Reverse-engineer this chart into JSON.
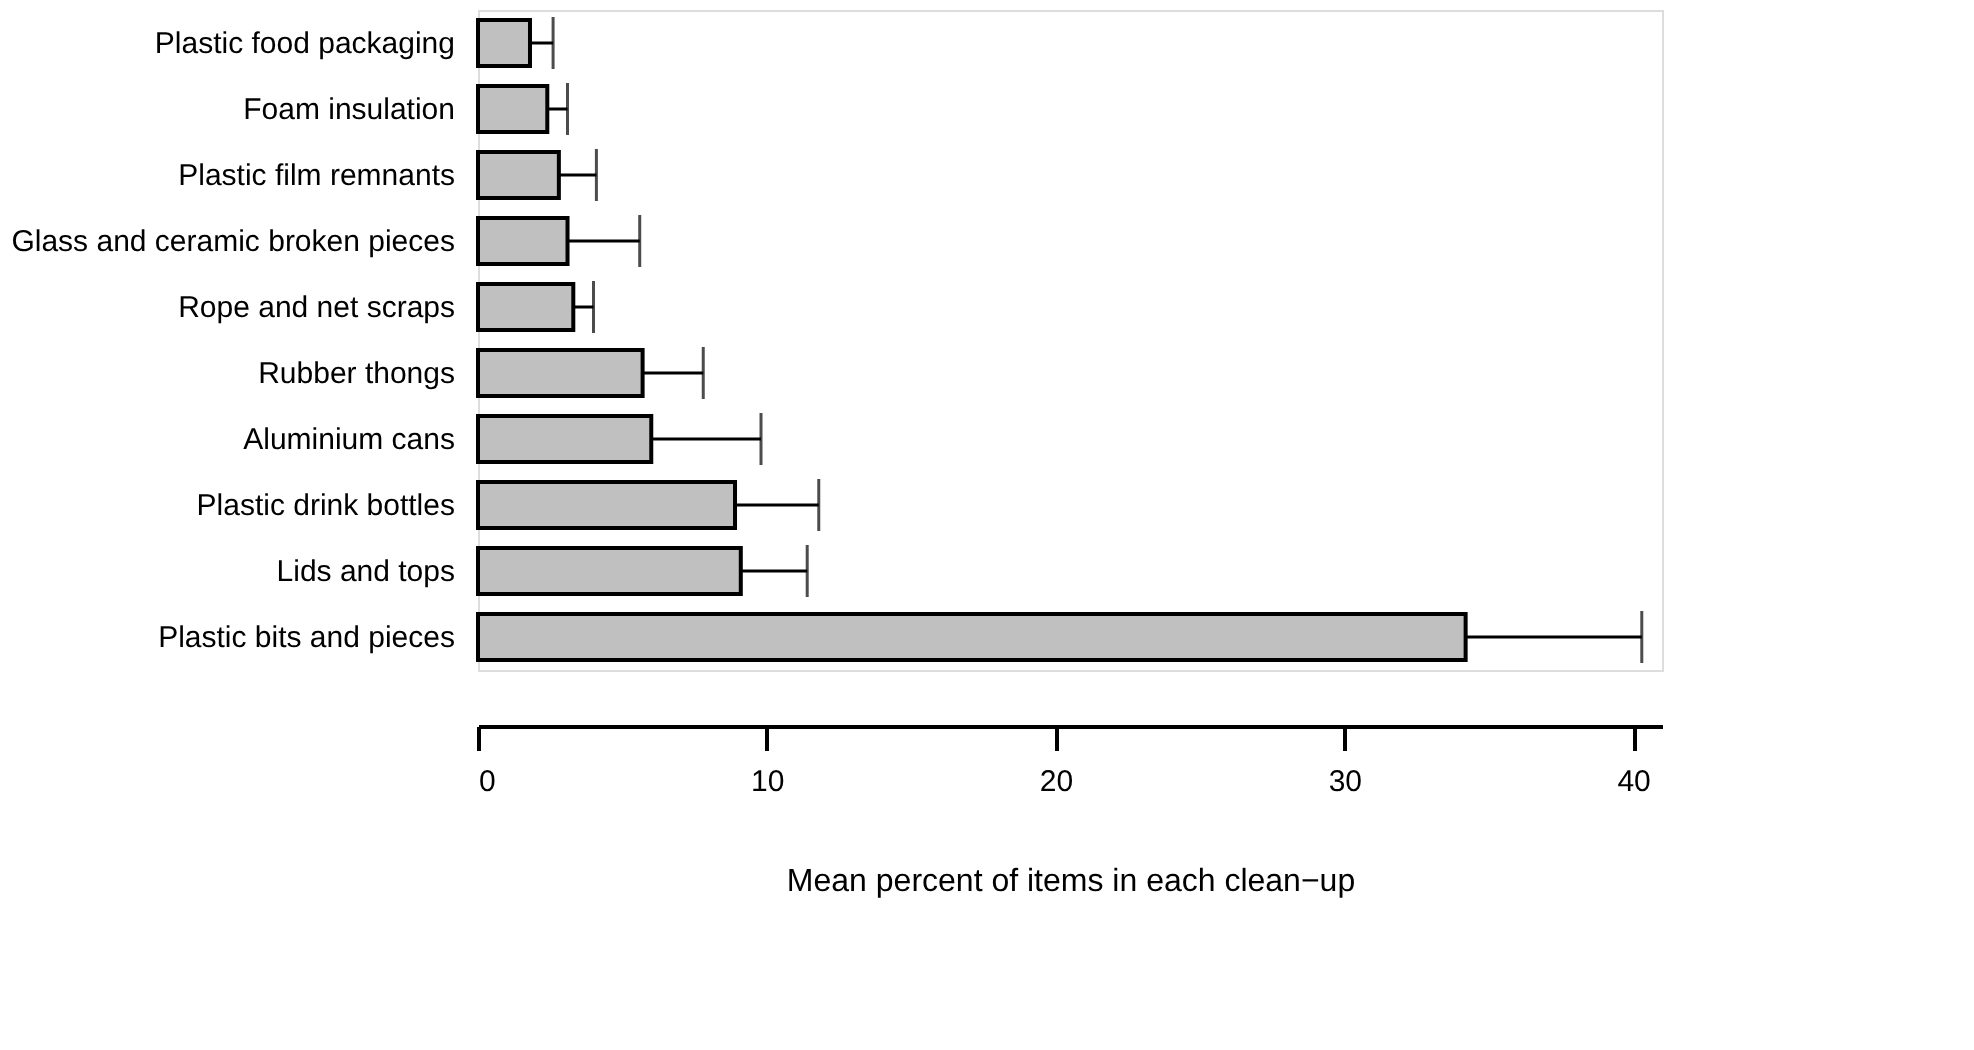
{
  "chart_data": {
    "type": "bar",
    "orientation": "horizontal",
    "xlabel": "Mean percent of items in each clean−up",
    "categories": [
      "Plastic food packaging",
      "Foam insulation",
      "Plastic film remnants",
      "Glass and ceramic broken pieces",
      "Rope and net scraps",
      "Rubber thongs",
      "Aluminium cans",
      "Plastic drink bottles",
      "Lids and tops",
      "Plastic bits and pieces"
    ],
    "values": [
      1.8,
      2.4,
      2.8,
      3.1,
      3.3,
      5.7,
      6.0,
      8.9,
      9.1,
      34.2
    ],
    "errors": [
      [
        1.8,
        2.6
      ],
      [
        2.4,
        3.1
      ],
      [
        2.8,
        4.1
      ],
      [
        3.1,
        5.6
      ],
      [
        3.3,
        4.0
      ],
      [
        5.7,
        7.8
      ],
      [
        6.0,
        9.8
      ],
      [
        8.9,
        11.8
      ],
      [
        9.1,
        11.4
      ],
      [
        34.2,
        40.3
      ]
    ],
    "color": "#c0c0c0",
    "xlim": [
      0,
      41
    ],
    "xticks": [
      0,
      10,
      20,
      30,
      40
    ],
    "grid": false
  }
}
